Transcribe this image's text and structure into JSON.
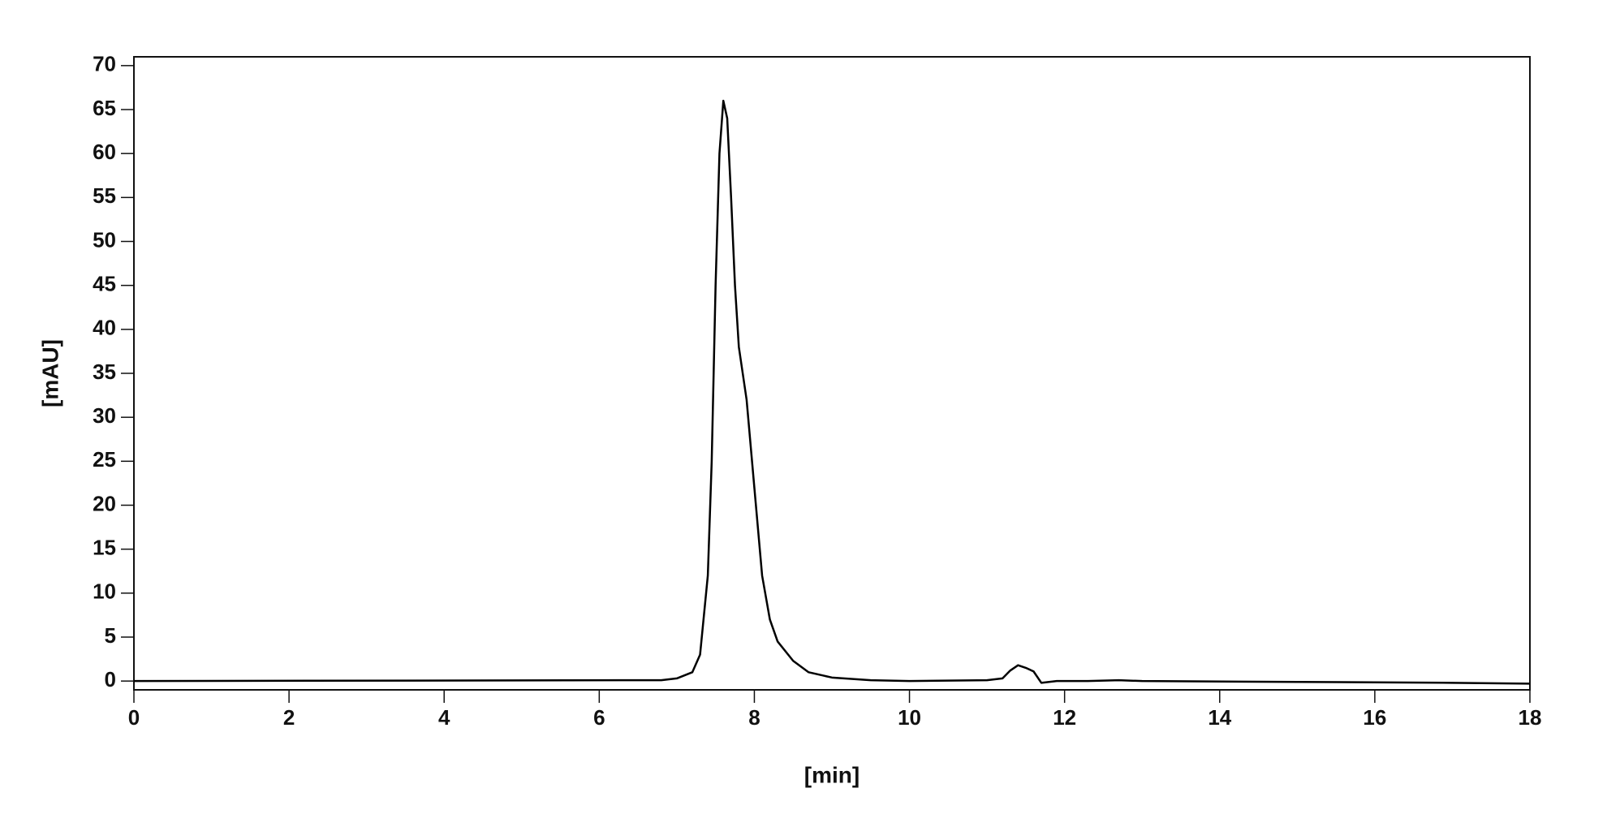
{
  "chart_data": {
    "type": "line",
    "x_label": "[min]",
    "y_label": "[mAU]",
    "x": [
      0,
      6.8,
      7.0,
      7.2,
      7.3,
      7.4,
      7.45,
      7.5,
      7.55,
      7.6,
      7.65,
      7.7,
      7.75,
      7.8,
      7.9,
      8.0,
      8.1,
      8.2,
      8.3,
      8.5,
      8.7,
      9.0,
      9.5,
      10,
      11,
      11.2,
      11.3,
      11.4,
      11.5,
      11.6,
      11.7,
      11.9,
      12.3,
      12.7,
      13,
      15,
      17,
      18
    ],
    "values": [
      0,
      0.1,
      0.3,
      1,
      3,
      12,
      25,
      45,
      60,
      66,
      64,
      55,
      45,
      38,
      32,
      22,
      12,
      7,
      4.5,
      2.3,
      1,
      0.4,
      0.1,
      0,
      0.1,
      0.3,
      1.2,
      1.8,
      1.5,
      1.1,
      -0.2,
      0,
      0,
      0.1,
      0,
      -0.1,
      -0.2,
      -0.3
    ],
    "color": "#000000",
    "xlim": [
      0,
      18
    ],
    "ylim": [
      -1,
      71
    ],
    "xticks": [
      0,
      2,
      4,
      6,
      8,
      10,
      12,
      14,
      16,
      18
    ],
    "yticks": [
      0,
      5,
      10,
      15,
      20,
      25,
      30,
      35,
      40,
      45,
      50,
      55,
      60,
      65,
      70
    ]
  }
}
